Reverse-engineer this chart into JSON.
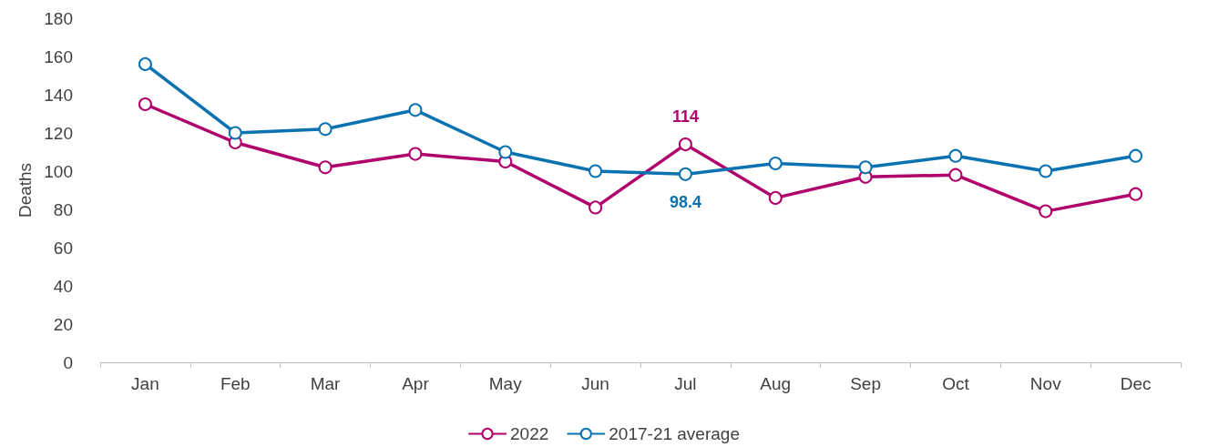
{
  "chart_data": {
    "type": "line",
    "ylabel": "Deaths",
    "categories": [
      "Jan",
      "Feb",
      "Mar",
      "Apr",
      "May",
      "Jun",
      "Jul",
      "Aug",
      "Sep",
      "Oct",
      "Nov",
      "Dec"
    ],
    "series": [
      {
        "name": "2022",
        "color": "#b0006b",
        "values": [
          135,
          115,
          102,
          109,
          105,
          81,
          114,
          86,
          97,
          98,
          79,
          88
        ],
        "value_labels": [
          null,
          null,
          null,
          null,
          null,
          null,
          "114",
          null,
          null,
          null,
          null,
          null
        ]
      },
      {
        "name": "2017-21 average",
        "color": "#0a72b0",
        "values": [
          156,
          120,
          122,
          132,
          110,
          100,
          98.4,
          104,
          102,
          108,
          100,
          108
        ],
        "value_labels": [
          null,
          null,
          null,
          null,
          null,
          null,
          "98.4",
          null,
          null,
          null,
          null,
          null
        ]
      }
    ],
    "ylim": [
      0,
      180
    ],
    "yticks": [
      0,
      20,
      40,
      60,
      80,
      100,
      120,
      140,
      160,
      180
    ],
    "grid": false,
    "legend": "bottom",
    "marker": "circle",
    "line_style": "solid"
  }
}
